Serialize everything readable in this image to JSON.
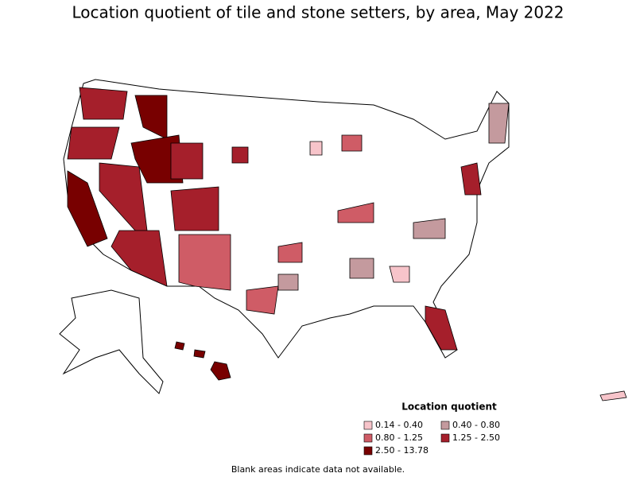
{
  "title": "Location quotient of tile and stone setters, by area, May 2022",
  "legend": {
    "title": "Location quotient",
    "items": [
      {
        "label": "0.14 - 0.40",
        "color": "#f7c4ca"
      },
      {
        "label": "0.40 - 0.80",
        "color": "#c49a9e"
      },
      {
        "label": "0.80 - 1.25",
        "color": "#cf5c66"
      },
      {
        "label": "1.25 - 2.50",
        "color": "#a51f2b"
      },
      {
        "label": "2.50 - 13.78",
        "color": "#780000"
      }
    ]
  },
  "note": "Blank areas indicate data not available."
}
